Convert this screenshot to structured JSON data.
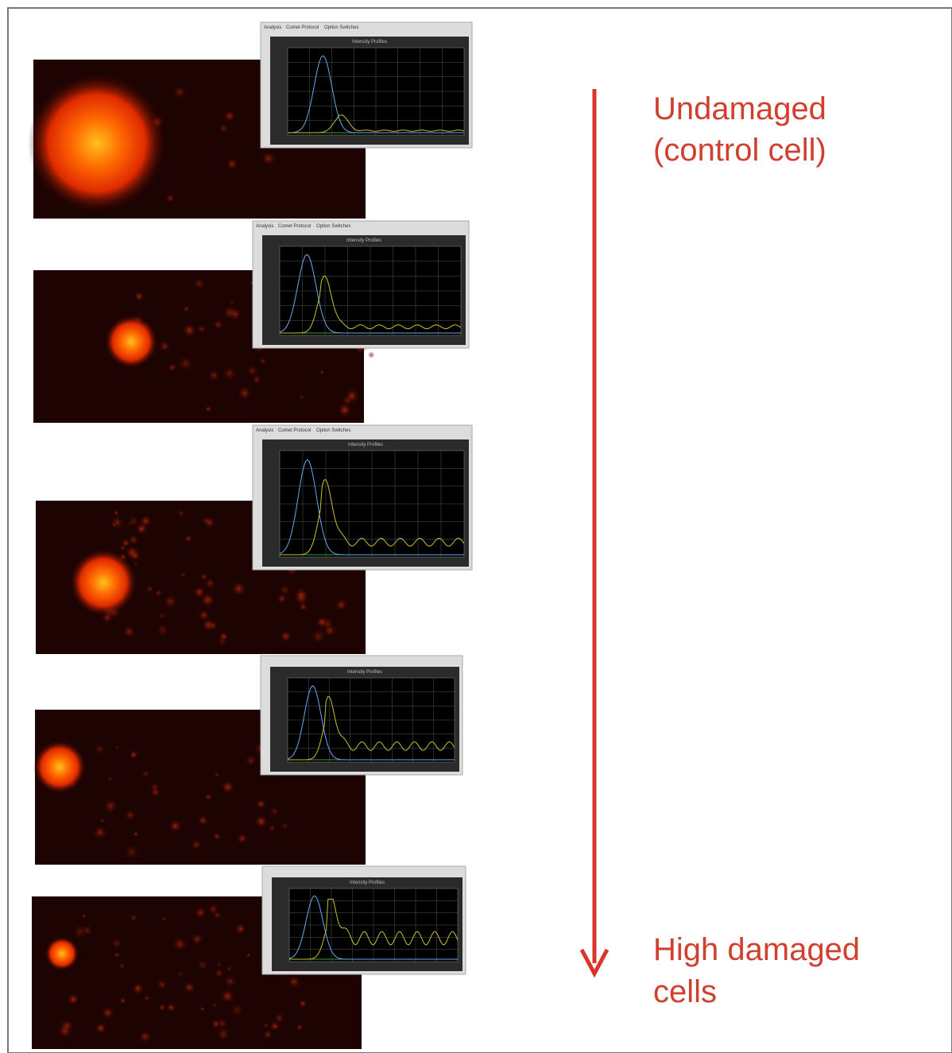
{
  "labels": {
    "top": [
      "Undamaged",
      "(control cell)"
    ],
    "bottom": [
      "High damaged",
      "cells"
    ]
  },
  "panels": [
    {
      "tabs": [
        "Analysis",
        "Comet Protocol",
        "Option Switches"
      ],
      "plot_title": "Intensity Profiles"
    },
    {
      "tabs": [
        "Analysis",
        "Comet Protocol",
        "Option Switches"
      ],
      "plot_title": "Intensity Profiles"
    },
    {
      "tabs": [
        "Analysis",
        "Comet Protocol",
        "Option Switches"
      ],
      "plot_title": "Intensity Profiles"
    },
    {
      "plot_title": "Intensity Profiles"
    },
    {
      "plot_title": "Intensity Profiles"
    }
  ]
}
